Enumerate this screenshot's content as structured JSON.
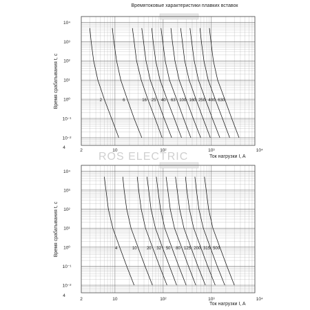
{
  "page": {
    "title": "Времятоковые характеристики плавких вставок",
    "watermark": "ROS ELECTRIC"
  },
  "chart_data": [
    {
      "type": "line",
      "title": "Времятоковые характеристики плавких вставок",
      "xlabel": "Ток нагрузки I, A",
      "ylabel": "Время срабатывания  t, c",
      "xscale": "log",
      "yscale": "log",
      "xlim": [
        2,
        8000
      ],
      "ylim": [
        0.004,
        20000
      ],
      "x_ticks": [
        {
          "value": 2,
          "label": "2"
        },
        {
          "value": 10,
          "label": "10"
        },
        {
          "value": 100,
          "label": "10²"
        },
        {
          "value": 1000,
          "label": "10³"
        },
        {
          "value": 10000,
          "label": "10⁴"
        }
      ],
      "y_ticks": [
        {
          "value": 10000,
          "label": "10⁴"
        },
        {
          "value": 1000,
          "label": "10³"
        },
        {
          "value": 100,
          "label": "10²"
        },
        {
          "value": 10,
          "label": "10¹"
        },
        {
          "value": 1,
          "label": "10⁰"
        },
        {
          "value": 0.1,
          "label": "10⁻¹"
        },
        {
          "value": 0.01,
          "label": "10⁻²"
        }
      ],
      "y_bottom_label": "4",
      "grid": true,
      "series": [
        {
          "name": "2",
          "x": [
            3.0,
            3.2,
            3.6,
            4.4,
            6.0,
            8.5,
            12
          ],
          "y": [
            5000,
            1000,
            100,
            10,
            1,
            0.1,
            0.01
          ]
        },
        {
          "name": "6",
          "x": [
            8.8,
            9.5,
            10.8,
            13.2,
            18,
            25,
            36
          ],
          "y": [
            5000,
            1000,
            100,
            10,
            1,
            0.1,
            0.01
          ]
        },
        {
          "name": "16",
          "x": [
            23,
            25,
            28,
            35,
            48,
            68,
            95
          ],
          "y": [
            5000,
            1000,
            100,
            10,
            1,
            0.1,
            0.01
          ]
        },
        {
          "name": "25",
          "x": [
            36,
            39,
            44,
            54,
            75,
            105,
            150
          ],
          "y": [
            5000,
            1000,
            100,
            10,
            1,
            0.1,
            0.01
          ]
        },
        {
          "name": "40",
          "x": [
            58,
            62,
            70,
            86,
            120,
            170,
            240
          ],
          "y": [
            5000,
            1000,
            100,
            10,
            1,
            0.1,
            0.01
          ]
        },
        {
          "name": "63",
          "x": [
            90,
            98,
            110,
            135,
            190,
            265,
            375
          ],
          "y": [
            5000,
            1000,
            100,
            10,
            1,
            0.1,
            0.01
          ]
        },
        {
          "name": "100",
          "x": [
            145,
            155,
            175,
            215,
            300,
            420,
            600
          ],
          "y": [
            5000,
            1000,
            100,
            10,
            1,
            0.1,
            0.01
          ]
        },
        {
          "name": "160",
          "x": [
            230,
            250,
            280,
            345,
            480,
            670,
            950
          ],
          "y": [
            5000,
            1000,
            100,
            10,
            1,
            0.1,
            0.01
          ]
        },
        {
          "name": "250",
          "x": [
            360,
            390,
            440,
            540,
            750,
            1050,
            1500
          ],
          "y": [
            5000,
            1000,
            100,
            10,
            1,
            0.1,
            0.01
          ]
        },
        {
          "name": "400",
          "x": [
            580,
            620,
            700,
            860,
            1200,
            1700,
            2400
          ],
          "y": [
            5000,
            1000,
            100,
            10,
            1,
            0.1,
            0.01
          ]
        },
        {
          "name": "630",
          "x": [
            910,
            980,
            1100,
            1350,
            1900,
            2650,
            3750
          ],
          "y": [
            5000,
            1000,
            100,
            10,
            1,
            0.1,
            0.01
          ]
        }
      ]
    },
    {
      "type": "line",
      "title": "",
      "xlabel": "Ток нагрузки I, A",
      "ylabel": "Время срабатывания  t, c",
      "xscale": "log",
      "yscale": "log",
      "xlim": [
        2,
        8000
      ],
      "ylim": [
        0.004,
        20000
      ],
      "x_ticks": [
        {
          "value": 2,
          "label": "2"
        },
        {
          "value": 10,
          "label": "10"
        },
        {
          "value": 100,
          "label": "10²"
        },
        {
          "value": 1000,
          "label": "10³"
        },
        {
          "value": 10000,
          "label": "10⁴"
        }
      ],
      "y_ticks": [
        {
          "value": 10000,
          "label": "10⁴"
        },
        {
          "value": 1000,
          "label": "10³"
        },
        {
          "value": 100,
          "label": "10²"
        },
        {
          "value": 10,
          "label": "10¹"
        },
        {
          "value": 1,
          "label": "10⁰"
        },
        {
          "value": 0.1,
          "label": "10⁻¹"
        },
        {
          "value": 0.01,
          "label": "10⁻²"
        }
      ],
      "y_bottom_label": "4",
      "grid": true,
      "series": [
        {
          "name": "4",
          "x": [
            6.0,
            6.5,
            7.3,
            9.0,
            12.5,
            17.5,
            25
          ],
          "y": [
            5000,
            1000,
            100,
            10,
            1,
            0.1,
            0.01
          ]
        },
        {
          "name": "10",
          "x": [
            14.5,
            15.5,
            17.5,
            21.5,
            30,
            42,
            60
          ],
          "y": [
            5000,
            1000,
            100,
            10,
            1,
            0.1,
            0.01
          ]
        },
        {
          "name": "20",
          "x": [
            29,
            31,
            35,
            43,
            60,
            84,
            120
          ],
          "y": [
            5000,
            1000,
            100,
            10,
            1,
            0.1,
            0.01
          ]
        },
        {
          "name": "32",
          "x": [
            46,
            50,
            56,
            69,
            96,
            135,
            190
          ],
          "y": [
            5000,
            1000,
            100,
            10,
            1,
            0.1,
            0.01
          ]
        },
        {
          "name": "50",
          "x": [
            72,
            78,
            88,
            108,
            150,
            210,
            300
          ],
          "y": [
            5000,
            1000,
            100,
            10,
            1,
            0.1,
            0.01
          ]
        },
        {
          "name": "80",
          "x": [
            115,
            125,
            140,
            172,
            240,
            335,
            475
          ],
          "y": [
            5000,
            1000,
            100,
            10,
            1,
            0.1,
            0.01
          ]
        },
        {
          "name": "125",
          "x": [
            180,
            195,
            220,
            270,
            375,
            525,
            750
          ],
          "y": [
            5000,
            1000,
            100,
            10,
            1,
            0.1,
            0.01
          ]
        },
        {
          "name": "200",
          "x": [
            290,
            310,
            350,
            430,
            600,
            840,
            1200
          ],
          "y": [
            5000,
            1000,
            100,
            10,
            1,
            0.1,
            0.01
          ]
        },
        {
          "name": "315",
          "x": [
            455,
            490,
            550,
            680,
            945,
            1320,
            1900
          ],
          "y": [
            5000,
            1000,
            100,
            10,
            1,
            0.1,
            0.01
          ]
        },
        {
          "name": "500",
          "x": [
            720,
            780,
            875,
            1075,
            1500,
            2100,
            3000
          ],
          "y": [
            5000,
            1000,
            100,
            10,
            1,
            0.1,
            0.01
          ]
        }
      ]
    }
  ]
}
